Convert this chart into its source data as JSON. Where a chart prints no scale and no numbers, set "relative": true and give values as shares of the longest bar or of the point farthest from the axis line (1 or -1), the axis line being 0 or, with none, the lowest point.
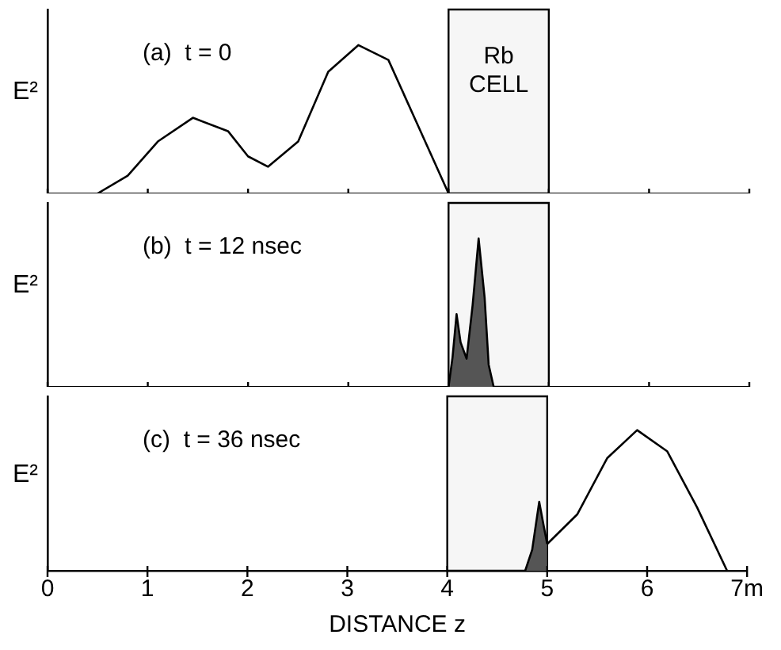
{
  "chart_data": [
    {
      "type": "line",
      "relative": true,
      "ylabel": "E²",
      "annotations": [
        "(a)  t = 0"
      ],
      "xlim": [
        0,
        7
      ],
      "xticks": [
        0,
        1,
        2,
        3,
        4,
        5,
        6,
        7
      ],
      "tick_labels": false,
      "grid": false,
      "legend": false,
      "marker": "none",
      "bands": [
        {
          "axis": "x",
          "from": 4,
          "to": 5,
          "label": "Rb\nCELL"
        }
      ],
      "series": [
        {
          "color": "#000000",
          "x": [
            0.5,
            0.8,
            1.1,
            1.45,
            1.8,
            2.0,
            2.2,
            2.5,
            2.8,
            3.1,
            3.4,
            3.7,
            4.0
          ],
          "values": [
            0,
            0.12,
            0.35,
            0.51,
            0.42,
            0.25,
            0.18,
            0.35,
            0.82,
            1,
            0.9,
            0.45,
            0
          ]
        }
      ]
    },
    {
      "type": "area",
      "relative": true,
      "ylabel": "E²",
      "annotations": [
        "(b)  t = 12 nsec"
      ],
      "xlim": [
        0,
        7
      ],
      "xticks": [
        0,
        1,
        2,
        3,
        4,
        5,
        6,
        7
      ],
      "tick_labels": false,
      "grid": false,
      "legend": false,
      "marker": "none",
      "bands": [
        {
          "axis": "x",
          "from": 4,
          "to": 5
        }
      ],
      "series": [
        {
          "color": "#555555",
          "x": [
            4.0,
            4.04,
            4.08,
            4.12,
            4.18,
            4.24,
            4.3,
            4.36,
            4.4,
            4.45
          ],
          "values": [
            0,
            0.2,
            0.49,
            0.3,
            0.19,
            0.55,
            1,
            0.6,
            0.15,
            0
          ]
        }
      ]
    },
    {
      "type": "line",
      "relative": true,
      "ylabel": "E²",
      "xlabel": "DISTANCE z",
      "annotations": [
        "(c)  t = 36 nsec"
      ],
      "xlim": [
        0,
        7
      ],
      "xticks": [
        0,
        1,
        2,
        3,
        4,
        5,
        6,
        {
          "value": 7,
          "label": "7m"
        }
      ],
      "tick_labels": "x",
      "grid": false,
      "legend": false,
      "marker": "none",
      "bands": [
        {
          "axis": "x",
          "from": 4,
          "to": 5
        }
      ],
      "series": [
        {
          "type": "area",
          "color": "#555555",
          "x": [
            4.78,
            4.85,
            4.92,
            4.97,
            5.0
          ],
          "values": [
            0,
            0.15,
            0.49,
            0.3,
            0.19
          ]
        },
        {
          "color": "#000000",
          "x": [
            5.0,
            5.3,
            5.6,
            5.9,
            6.2,
            6.5,
            6.8
          ],
          "values": [
            0.19,
            0.4,
            0.8,
            1,
            0.85,
            0.45,
            0
          ]
        }
      ]
    }
  ]
}
